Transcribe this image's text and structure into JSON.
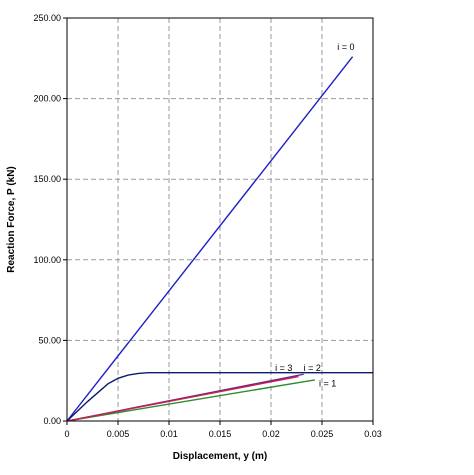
{
  "chart_data": {
    "type": "line",
    "title": "",
    "xlabel": "Displacement, y (m)",
    "ylabel": "Reaction Force, P (kN)",
    "xlim": [
      0,
      0.03
    ],
    "ylim": [
      0,
      250
    ],
    "x_ticks": [
      "0",
      "0.005",
      "0.01",
      "0.015",
      "0.02",
      "0.025",
      "0.03"
    ],
    "y_ticks": [
      "0.00",
      "50.00",
      "100.00",
      "150.00",
      "200.00",
      "250.00"
    ],
    "grid": true,
    "series": [
      {
        "name": "i = 0",
        "color": "#1f1fc8",
        "points": [
          [
            0,
            0
          ],
          [
            0.028,
            226
          ]
        ]
      },
      {
        "name": "",
        "color": "#0d1a6e",
        "points": [
          [
            0,
            0
          ],
          [
            0.001,
            6
          ],
          [
            0.002,
            12
          ],
          [
            0.003,
            17.5
          ],
          [
            0.004,
            23
          ],
          [
            0.005,
            26.5
          ],
          [
            0.006,
            28.5
          ],
          [
            0.007,
            29.5
          ],
          [
            0.008,
            30
          ],
          [
            0.03,
            30
          ]
        ]
      },
      {
        "name": "i = 1",
        "color": "#2e8b2e",
        "points": [
          [
            0,
            0
          ],
          [
            0.0243,
            25.5
          ]
        ]
      },
      {
        "name": "i = 2",
        "color": "#5a2a8c",
        "points": [
          [
            0,
            0
          ],
          [
            0.0232,
            29
          ]
        ]
      },
      {
        "name": "i = 3",
        "color": "#cc1e50",
        "points": [
          [
            0,
            0
          ],
          [
            0.0227,
            27.6
          ]
        ]
      }
    ],
    "labels": [
      {
        "text": "i = 0",
        "x": 0.0265,
        "y": 230
      },
      {
        "text": "i = 3",
        "x": 0.0204,
        "y": 31
      },
      {
        "text": "i = 2",
        "x": 0.0232,
        "y": 31
      },
      {
        "text": "i = 1",
        "x": 0.0247,
        "y": 21.5
      }
    ]
  }
}
